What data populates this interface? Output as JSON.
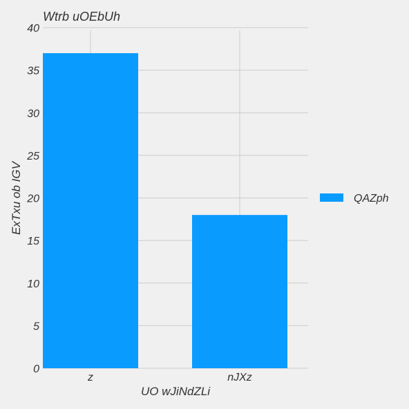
{
  "chart_data": {
    "type": "bar",
    "title": "Wtrb uOEbUh",
    "xlabel": "UO  wJiNdZLi",
    "ylabel": "ExTxu ob IGV",
    "categories": [
      "z",
      "nJXz"
    ],
    "series": [
      {
        "name": "QAZph",
        "values": [
          37,
          18
        ]
      }
    ],
    "ylim": [
      0,
      40
    ],
    "yticks": [
      0,
      5,
      10,
      15,
      20,
      25,
      30,
      35,
      40
    ],
    "grid": true,
    "legend": "right",
    "colors": {
      "bar": "#0a9bff",
      "grid": "#cbcbcb",
      "background": "#f0f0f0",
      "text": "#333333"
    }
  }
}
